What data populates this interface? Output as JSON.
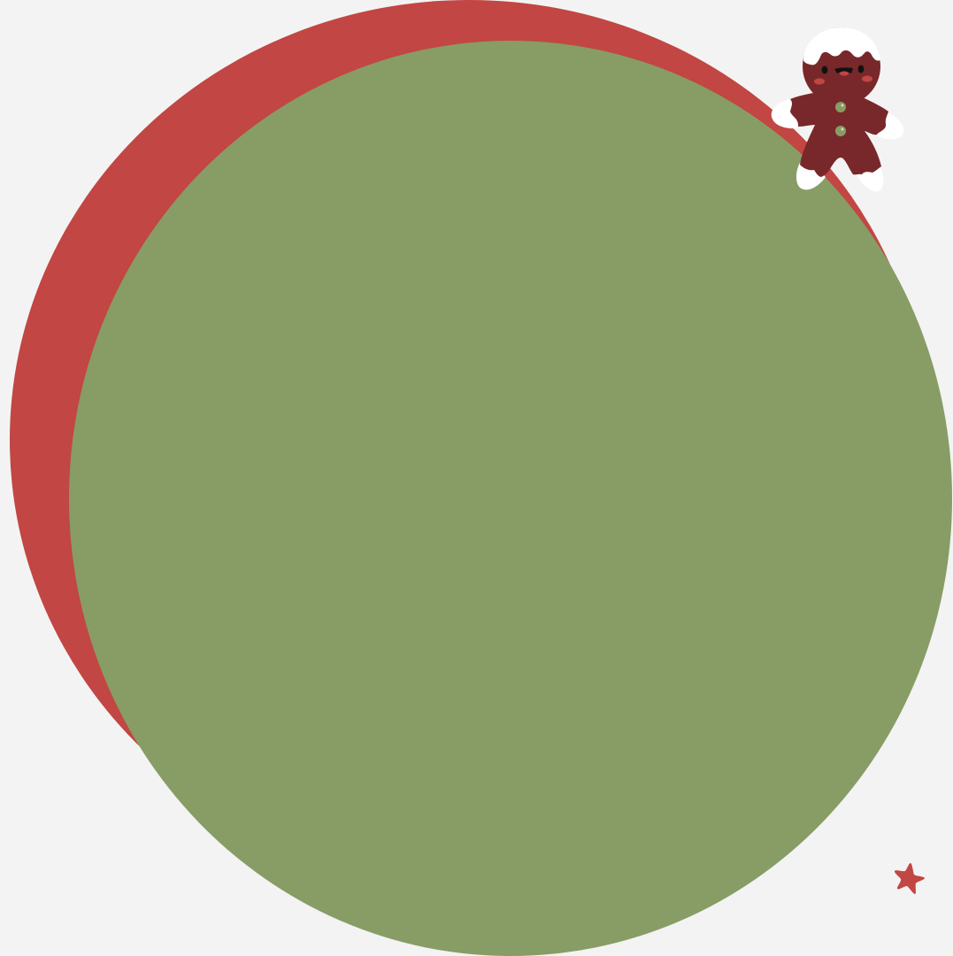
{
  "palette": {
    "background": "#f3f3f3",
    "back_circle": "#c24643",
    "front_circle": "#879d65",
    "gingerbread_body": "#78282a",
    "icing": "#ffffff",
    "buttons": "#879d65",
    "cheeks": "#c24643",
    "eyes": "#111111",
    "star": "#c24643"
  },
  "decorations": {
    "character_icon": "gingerbread-man-icon",
    "star_icon": "star-icon"
  }
}
